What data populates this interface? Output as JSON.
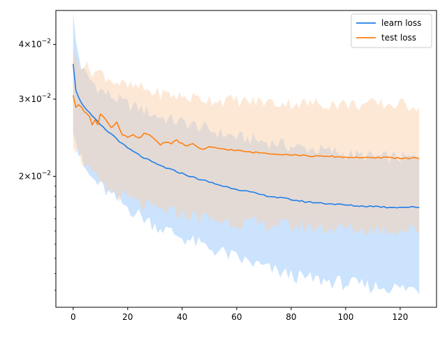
{
  "chart_data": {
    "type": "line",
    "title": "",
    "xlabel": "",
    "ylabel": "",
    "x_range": [
      0,
      127
    ],
    "xlim": [
      -6.35,
      133.35
    ],
    "ylim": [
      0.01005,
      0.0478
    ],
    "yscale": "log",
    "grid": false,
    "legend_position": "top-right",
    "x_ticks": [
      0,
      20,
      40,
      60,
      80,
      100,
      120
    ],
    "x_tick_labels": [
      "0",
      "20",
      "40",
      "60",
      "80",
      "100",
      "120"
    ],
    "y_ticks": [
      0.02,
      0.03,
      0.04
    ],
    "y_tick_labels": [
      {
        "mantissa": "2",
        "base": "10",
        "exp": "−2"
      },
      {
        "mantissa": "3",
        "base": "10",
        "exp": "−2"
      },
      {
        "mantissa": "4",
        "base": "10",
        "exp": "−2"
      }
    ],
    "series": [
      {
        "name": "learn loss",
        "color": "#1f7ee8",
        "band_color": "#a8d1fb",
        "mean_points": [
          [
            0,
            0.0362
          ],
          [
            1,
            0.0315
          ],
          [
            2,
            0.0302
          ],
          [
            3,
            0.0295
          ],
          [
            5,
            0.0283
          ],
          [
            8,
            0.027
          ],
          [
            10,
            0.0262
          ],
          [
            12,
            0.0255
          ],
          [
            15,
            0.0247
          ],
          [
            18,
            0.0237
          ],
          [
            20,
            0.0232
          ],
          [
            25,
            0.0222
          ],
          [
            30,
            0.0214
          ],
          [
            35,
            0.0208
          ],
          [
            40,
            0.0203
          ],
          [
            45,
            0.0198
          ],
          [
            50,
            0.0194
          ],
          [
            55,
            0.019
          ],
          [
            60,
            0.0187
          ],
          [
            65,
            0.0184
          ],
          [
            70,
            0.0181
          ],
          [
            75,
            0.0179
          ],
          [
            80,
            0.0177
          ],
          [
            85,
            0.0175
          ],
          [
            90,
            0.0174
          ],
          [
            95,
            0.0173
          ],
          [
            100,
            0.0172
          ],
          [
            105,
            0.0171
          ],
          [
            110,
            0.0171
          ],
          [
            115,
            0.017
          ],
          [
            120,
            0.017
          ],
          [
            127,
            0.017
          ]
        ],
        "band_upper": [
          [
            0,
            0.0465
          ],
          [
            1,
            0.0405
          ],
          [
            3,
            0.0355
          ],
          [
            5,
            0.0338
          ],
          [
            10,
            0.0315
          ],
          [
            15,
            0.0302
          ],
          [
            20,
            0.0292
          ],
          [
            25,
            0.0285
          ],
          [
            30,
            0.0276
          ],
          [
            35,
            0.027
          ],
          [
            40,
            0.0266
          ],
          [
            45,
            0.0261
          ],
          [
            50,
            0.0255
          ],
          [
            55,
            0.025
          ],
          [
            60,
            0.0246
          ],
          [
            65,
            0.0243
          ],
          [
            70,
            0.024
          ],
          [
            75,
            0.0238
          ],
          [
            80,
            0.0234
          ],
          [
            85,
            0.0232
          ],
          [
            90,
            0.023
          ],
          [
            95,
            0.0228
          ],
          [
            100,
            0.0225
          ],
          [
            105,
            0.0223
          ],
          [
            110,
            0.0222
          ],
          [
            115,
            0.0221
          ],
          [
            120,
            0.0221
          ],
          [
            127,
            0.022
          ]
        ],
        "band_lower": [
          [
            0,
            0.026
          ],
          [
            2,
            0.0225
          ],
          [
            4,
            0.021
          ],
          [
            6,
            0.02
          ],
          [
            10,
            0.019
          ],
          [
            15,
            0.0178
          ],
          [
            20,
            0.017
          ],
          [
            25,
            0.0162
          ],
          [
            30,
            0.0155
          ],
          [
            35,
            0.015
          ],
          [
            40,
            0.0145
          ],
          [
            45,
            0.0141
          ],
          [
            50,
            0.0137
          ],
          [
            55,
            0.0134
          ],
          [
            60,
            0.013
          ],
          [
            65,
            0.0127
          ],
          [
            70,
            0.0124
          ],
          [
            75,
            0.0121
          ],
          [
            80,
            0.0119
          ],
          [
            85,
            0.0117
          ],
          [
            90,
            0.0116
          ],
          [
            95,
            0.0115
          ],
          [
            100,
            0.0114
          ],
          [
            105,
            0.0113
          ],
          [
            110,
            0.0112
          ],
          [
            115,
            0.0112
          ],
          [
            120,
            0.0111
          ],
          [
            127,
            0.0111
          ]
        ]
      },
      {
        "name": "test loss",
        "color": "#ff7f0e",
        "band_color": "#fbd2ae",
        "mean_points": [
          [
            0,
            0.0305
          ],
          [
            1,
            0.0288
          ],
          [
            2,
            0.0292
          ],
          [
            3,
            0.0289
          ],
          [
            4,
            0.0282
          ],
          [
            5,
            0.0278
          ],
          [
            6,
            0.0273
          ],
          [
            7,
            0.0262
          ],
          [
            8,
            0.027
          ],
          [
            9,
            0.0262
          ],
          [
            10,
            0.0278
          ],
          [
            12,
            0.027
          ],
          [
            14,
            0.0258
          ],
          [
            16,
            0.0265
          ],
          [
            18,
            0.0248
          ],
          [
            20,
            0.0246
          ],
          [
            22,
            0.0248
          ],
          [
            24,
            0.0244
          ],
          [
            26,
            0.025
          ],
          [
            28,
            0.0248
          ],
          [
            30,
            0.0243
          ],
          [
            32,
            0.0236
          ],
          [
            34,
            0.024
          ],
          [
            36,
            0.0238
          ],
          [
            38,
            0.0242
          ],
          [
            40,
            0.0237
          ],
          [
            42,
            0.0234
          ],
          [
            44,
            0.0238
          ],
          [
            46,
            0.0232
          ],
          [
            48,
            0.023
          ],
          [
            50,
            0.0233
          ],
          [
            55,
            0.0231
          ],
          [
            60,
            0.0229
          ],
          [
            65,
            0.0227
          ],
          [
            70,
            0.0226
          ],
          [
            75,
            0.0225
          ],
          [
            80,
            0.0224
          ],
          [
            85,
            0.0223
          ],
          [
            90,
            0.0222
          ],
          [
            95,
            0.0222
          ],
          [
            100,
            0.0221
          ],
          [
            105,
            0.0221
          ],
          [
            110,
            0.022
          ],
          [
            115,
            0.0221
          ],
          [
            120,
            0.022
          ],
          [
            127,
            0.022
          ]
        ],
        "band_upper": [
          [
            0,
            0.038
          ],
          [
            3,
            0.0362
          ],
          [
            6,
            0.035
          ],
          [
            10,
            0.0345
          ],
          [
            15,
            0.033
          ],
          [
            20,
            0.032
          ],
          [
            25,
            0.0318
          ],
          [
            30,
            0.031
          ],
          [
            35,
            0.0308
          ],
          [
            40,
            0.0303
          ],
          [
            45,
            0.0302
          ],
          [
            50,
            0.03
          ],
          [
            55,
            0.0298
          ],
          [
            60,
            0.0298
          ],
          [
            65,
            0.0296
          ],
          [
            70,
            0.0296
          ],
          [
            75,
            0.0294
          ],
          [
            80,
            0.0294
          ],
          [
            85,
            0.0293
          ],
          [
            90,
            0.0293
          ],
          [
            95,
            0.0293
          ],
          [
            100,
            0.0292
          ],
          [
            105,
            0.0292
          ],
          [
            110,
            0.0292
          ],
          [
            115,
            0.0292
          ],
          [
            120,
            0.0292
          ],
          [
            127,
            0.029
          ]
        ],
        "band_lower": [
          [
            0,
            0.024
          ],
          [
            3,
            0.022
          ],
          [
            6,
            0.0205
          ],
          [
            10,
            0.0192
          ],
          [
            15,
            0.0183
          ],
          [
            20,
            0.0178
          ],
          [
            25,
            0.0172
          ],
          [
            30,
            0.0168
          ],
          [
            35,
            0.0166
          ],
          [
            40,
            0.0164
          ],
          [
            45,
            0.0162
          ],
          [
            50,
            0.016
          ],
          [
            55,
            0.0158
          ],
          [
            60,
            0.0157
          ],
          [
            65,
            0.0156
          ],
          [
            70,
            0.0155
          ],
          [
            75,
            0.0155
          ],
          [
            80,
            0.0154
          ],
          [
            85,
            0.0153
          ],
          [
            90,
            0.0153
          ],
          [
            95,
            0.0152
          ],
          [
            100,
            0.0152
          ],
          [
            105,
            0.0151
          ],
          [
            110,
            0.0151
          ],
          [
            115,
            0.0151
          ],
          [
            120,
            0.0151
          ],
          [
            127,
            0.0151
          ]
        ]
      }
    ]
  }
}
